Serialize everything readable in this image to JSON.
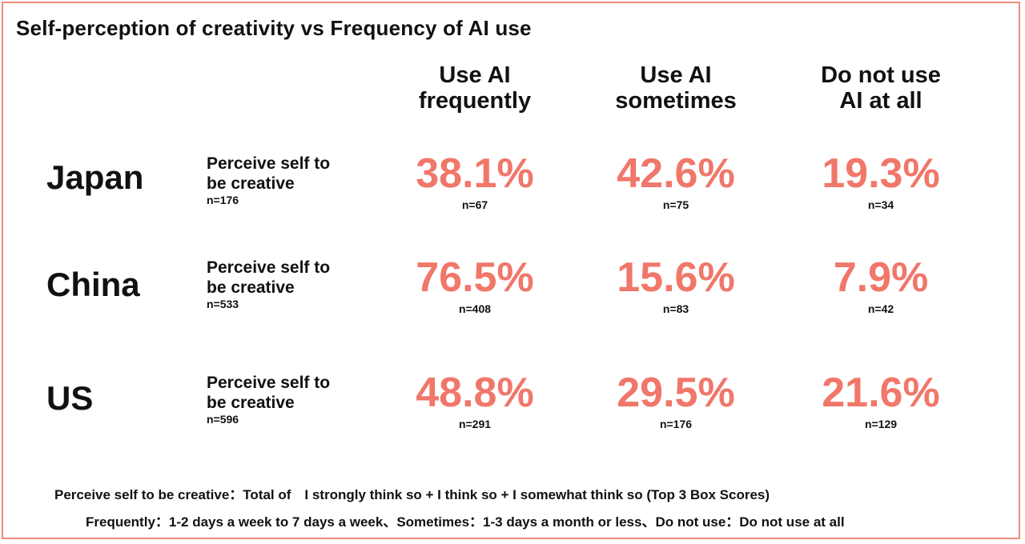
{
  "chart_data": {
    "type": "table",
    "title": "Self-perception of creativity vs Frequency of AI use",
    "columns": [
      {
        "line1": "Use AI",
        "line2": "frequently"
      },
      {
        "line1": "Use AI",
        "line2": "sometimes"
      },
      {
        "line1": "Do not use",
        "line2": "AI at all"
      }
    ],
    "rows": [
      {
        "country": "Japan",
        "label_line1": "Perceive self to",
        "label_line2": "be creative",
        "n": "n=176",
        "values": [
          38.1,
          42.6,
          19.3
        ],
        "value_labels": [
          "38.1%",
          "42.6%",
          "19.3%"
        ],
        "ns": [
          "n=67",
          "n=75",
          "n=34"
        ]
      },
      {
        "country": "China",
        "label_line1": "Perceive self to",
        "label_line2": "be creative",
        "n": "n=533",
        "values": [
          76.5,
          15.6,
          7.9
        ],
        "value_labels": [
          "76.5%",
          "15.6%",
          "7.9%"
        ],
        "ns": [
          "n=408",
          "n=83",
          "n=42"
        ]
      },
      {
        "country": "US",
        "label_line1": "Perceive self to",
        "label_line2": "be creative",
        "n": "n=596",
        "values": [
          48.8,
          29.5,
          21.6
        ],
        "value_labels": [
          "48.8%",
          "29.5%",
          "21.6%"
        ],
        "ns": [
          "n=291",
          "n=176",
          "n=129"
        ]
      }
    ],
    "footnotes": [
      "Perceive self to be creative：Total of　I strongly think so + I think so + I somewhat think so (Top 3 Box Scores)",
      "Frequently：1-2 days a week to 7 days a week、Sometimes：1-3 days a month or less、Do not use：Do not use at all"
    ]
  },
  "colors": {
    "accent": "#f0776a",
    "border": "#f08a7e",
    "text": "#111111"
  }
}
